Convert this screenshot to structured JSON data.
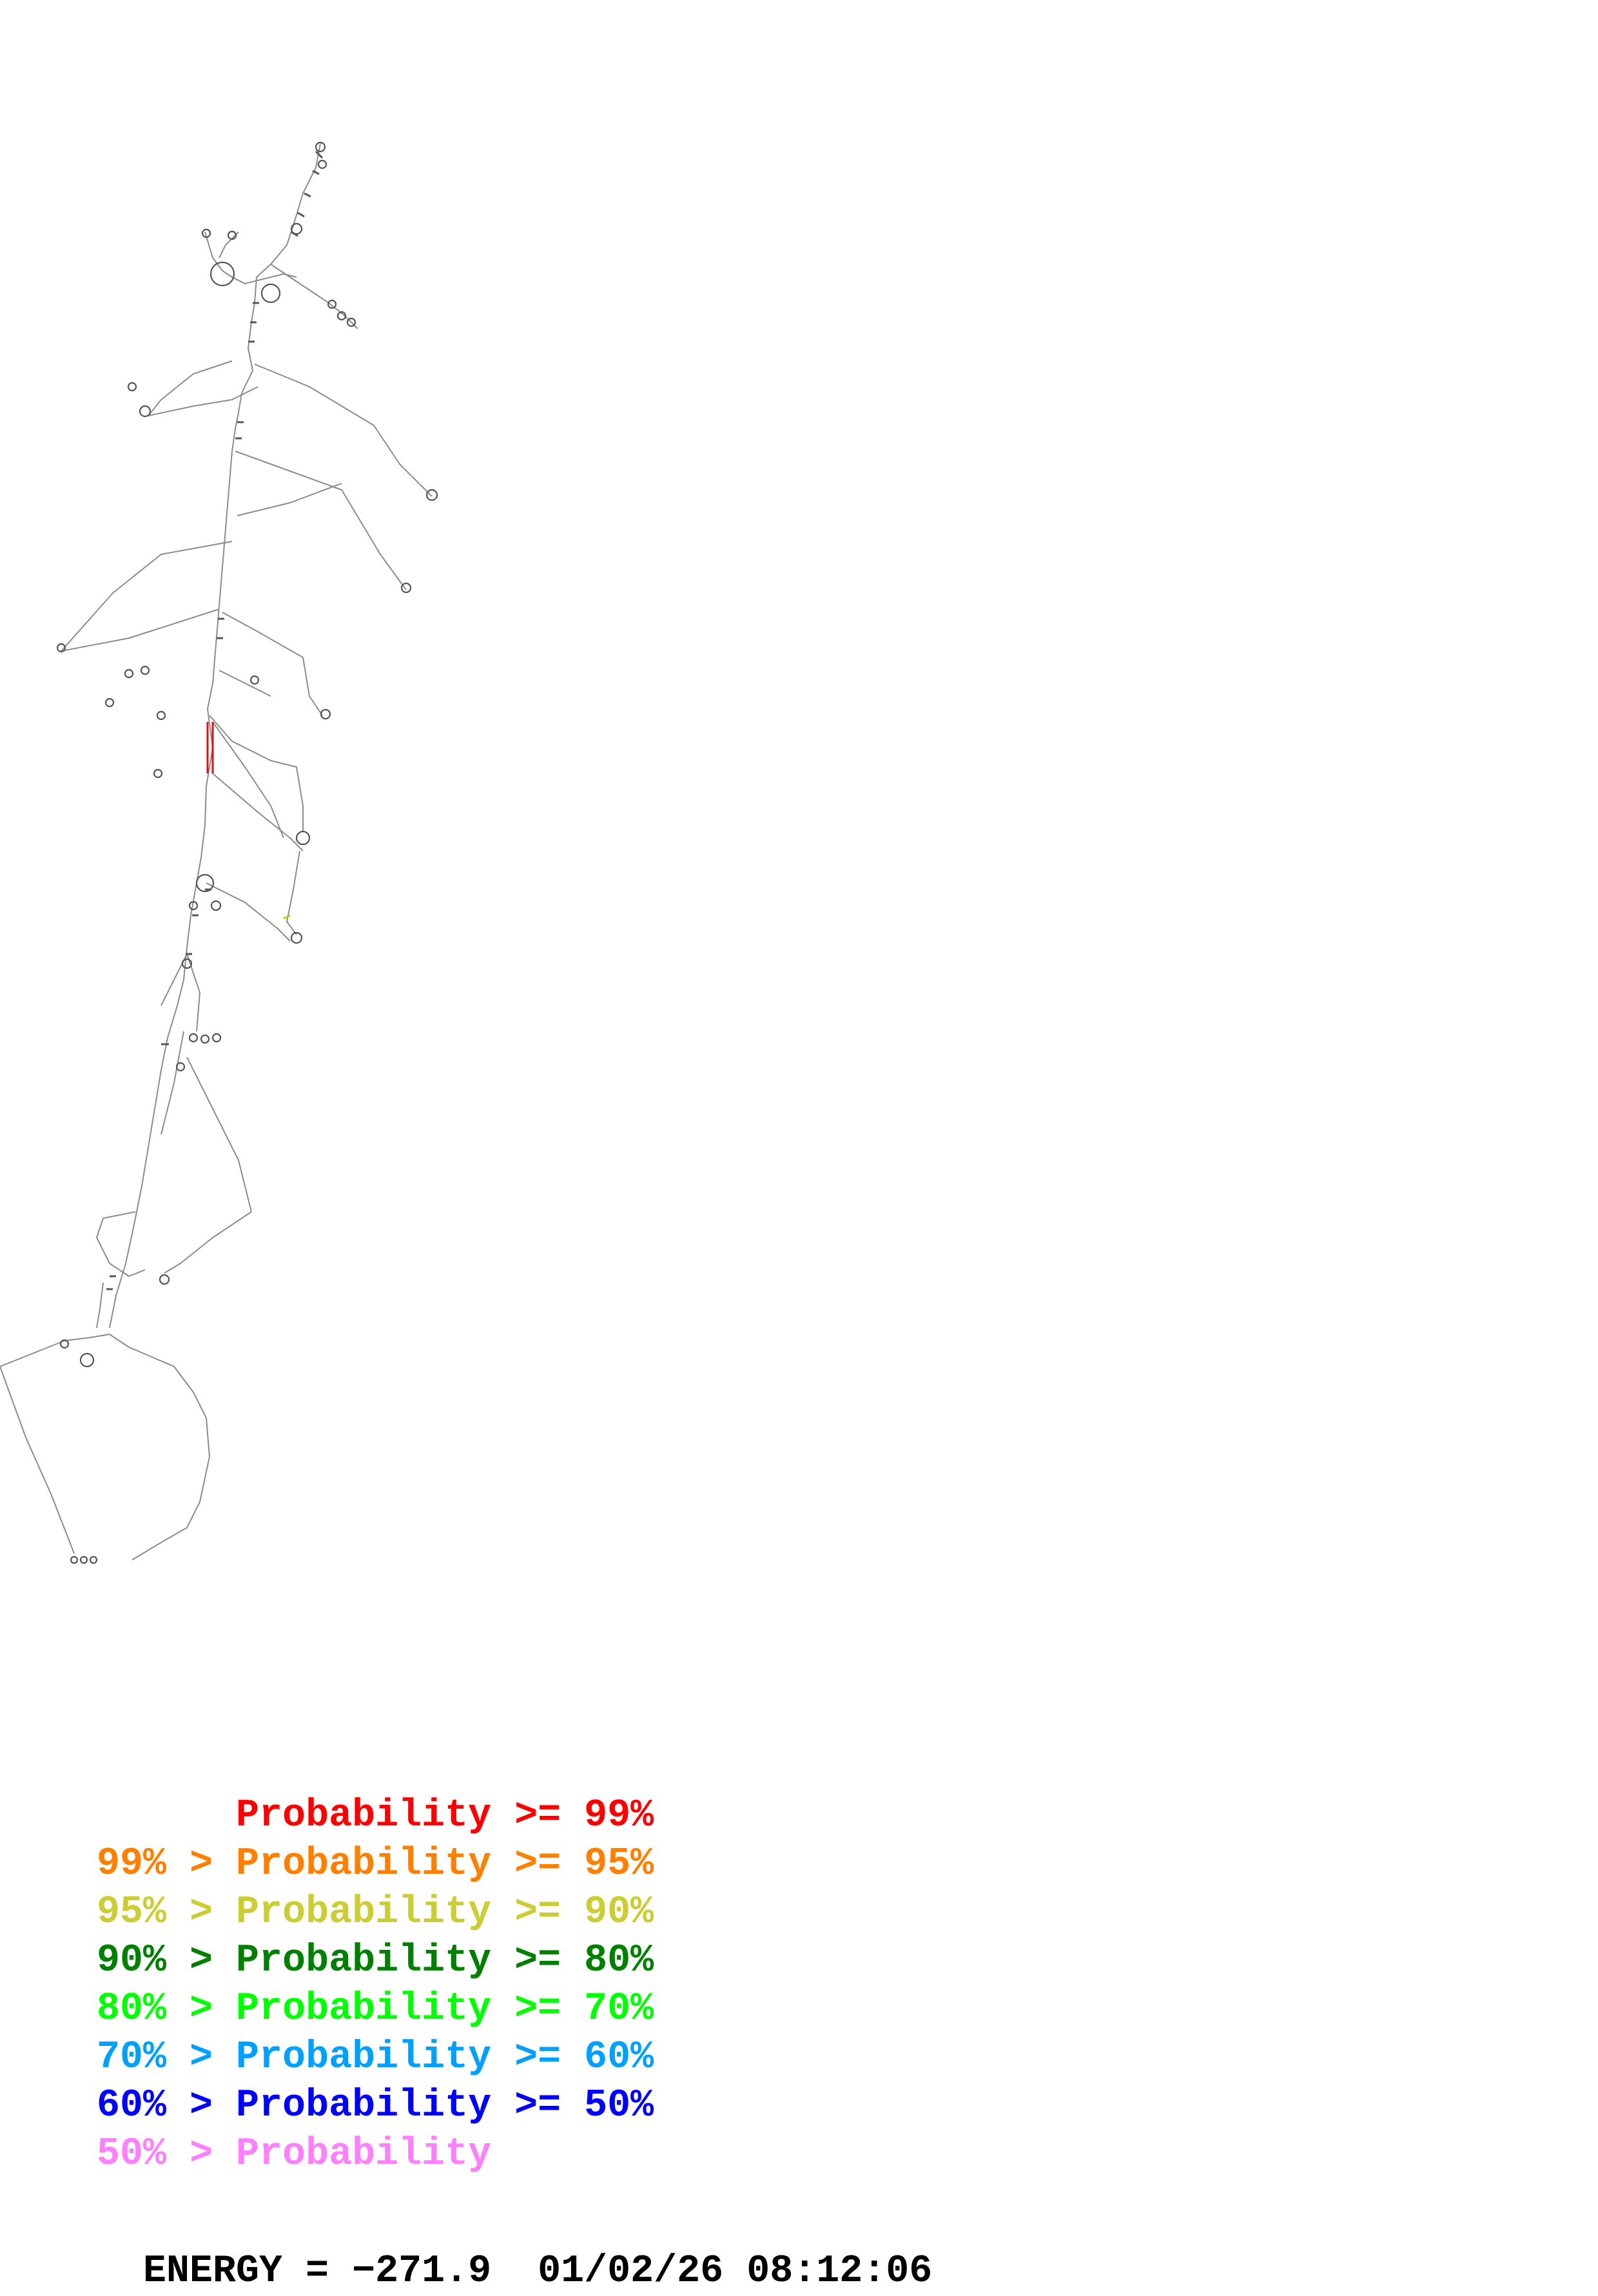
{
  "legend": [
    {
      "prefix": "    ",
      "gt": "",
      "label": "Probability",
      "ge": ">=",
      "value": "99%",
      "color": "#ff0000"
    },
    {
      "prefix": "99%",
      "gt": ">",
      "label": "Probability",
      "ge": ">=",
      "value": "95%",
      "color": "#ff8000"
    },
    {
      "prefix": "95%",
      "gt": ">",
      "label": "Probability",
      "ge": ">=",
      "value": "90%",
      "color": "#cccc33"
    },
    {
      "prefix": "90%",
      "gt": ">",
      "label": "Probability",
      "ge": ">=",
      "value": "80%",
      "color": "#008000"
    },
    {
      "prefix": "80%",
      "gt": ">",
      "label": "Probability",
      "ge": ">=",
      "value": "70%",
      "color": "#00ff00"
    },
    {
      "prefix": "70%",
      "gt": ">",
      "label": "Probability",
      "ge": ">=",
      "value": "60%",
      "color": "#00a0ff"
    },
    {
      "prefix": "60%",
      "gt": ">",
      "label": "Probability",
      "ge": ">=",
      "value": "50%",
      "color": "#0000ff"
    },
    {
      "prefix": "50%",
      "gt": ">",
      "label": "Probability",
      "ge": "",
      "value": "",
      "color": "#ff80ff"
    }
  ],
  "footer": {
    "energy_label": "ENERGY = ",
    "energy_value": "−271.9",
    "date": "01/02/26",
    "time": "08:12:06"
  }
}
